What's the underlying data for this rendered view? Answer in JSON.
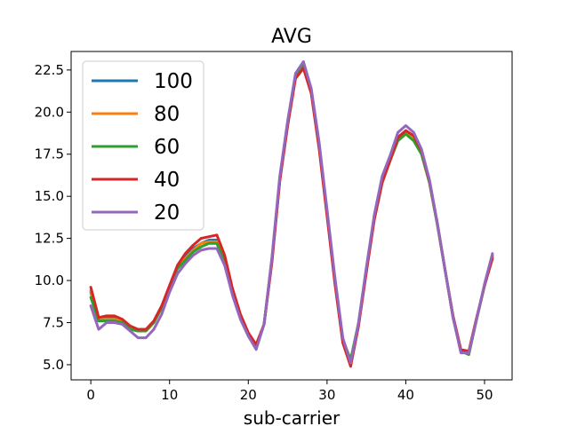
{
  "chart_data": {
    "type": "line",
    "title": "AVG",
    "xlabel": "sub-carrier",
    "ylabel": "",
    "xlim": [
      -2.5,
      53.5
    ],
    "ylim": [
      4.1,
      23.6
    ],
    "xticks": [
      0,
      10,
      20,
      30,
      40,
      50
    ],
    "yticks": [
      5.0,
      7.5,
      10.0,
      12.5,
      15.0,
      17.5,
      20.0,
      22.5
    ],
    "ytick_labels": [
      "5.0",
      "7.5",
      "10.0",
      "12.5",
      "15.0",
      "17.5",
      "20.0",
      "22.5"
    ],
    "xtick_labels": [
      "0",
      "10",
      "20",
      "30",
      "40",
      "50"
    ],
    "grid": false,
    "legend_position": "top-left",
    "x": [
      0,
      1,
      2,
      3,
      4,
      5,
      6,
      7,
      8,
      9,
      10,
      11,
      12,
      13,
      14,
      15,
      16,
      17,
      18,
      19,
      20,
      21,
      22,
      23,
      24,
      25,
      26,
      27,
      28,
      29,
      30,
      31,
      32,
      33,
      34,
      35,
      36,
      37,
      38,
      39,
      40,
      41,
      42,
      43,
      44,
      45,
      46,
      47,
      48,
      49,
      50,
      51
    ],
    "series": [
      {
        "name": "100",
        "color": "#1f77b4",
        "values": [
          9.3,
          7.6,
          7.8,
          7.8,
          7.6,
          7.2,
          7.1,
          7.1,
          7.5,
          8.4,
          9.6,
          10.8,
          11.4,
          11.9,
          12.2,
          12.4,
          12.4,
          11.2,
          9.3,
          7.9,
          6.8,
          6.0,
          7.4,
          11.2,
          16.0,
          19.3,
          22.1,
          22.7,
          21.2,
          18.0,
          14.0,
          10.0,
          6.4,
          5.0,
          7.4,
          10.6,
          13.7,
          16.0,
          17.2,
          18.5,
          18.9,
          18.5,
          17.6,
          15.9,
          13.4,
          10.6,
          7.8,
          5.8,
          5.7,
          7.7,
          9.7,
          11.5
        ]
      },
      {
        "name": "80",
        "color": "#ff7f0e",
        "values": [
          9.4,
          7.7,
          7.7,
          7.7,
          7.6,
          7.2,
          7.0,
          7.0,
          7.5,
          8.4,
          9.6,
          10.8,
          11.3,
          11.8,
          12.2,
          12.3,
          12.3,
          11.2,
          9.3,
          7.9,
          6.8,
          6.0,
          7.4,
          11.2,
          16.0,
          19.3,
          22.1,
          22.8,
          21.2,
          18.0,
          14.0,
          10.0,
          6.4,
          5.1,
          7.4,
          10.6,
          13.7,
          16.0,
          17.2,
          18.5,
          18.9,
          18.5,
          17.6,
          15.9,
          13.4,
          10.6,
          7.8,
          5.8,
          5.6,
          7.7,
          9.7,
          11.4
        ]
      },
      {
        "name": "60",
        "color": "#2ca02c",
        "values": [
          9.0,
          7.6,
          7.6,
          7.6,
          7.5,
          7.1,
          7.0,
          7.0,
          7.5,
          8.4,
          9.6,
          10.7,
          11.2,
          11.7,
          12.0,
          12.2,
          12.2,
          11.1,
          9.2,
          7.8,
          6.7,
          6.0,
          7.4,
          11.3,
          16.0,
          19.4,
          22.2,
          22.8,
          21.3,
          18.0,
          14.0,
          10.0,
          6.5,
          5.3,
          7.5,
          10.7,
          13.7,
          15.9,
          17.1,
          18.3,
          18.7,
          18.3,
          17.5,
          15.8,
          13.3,
          10.6,
          7.8,
          5.8,
          5.6,
          7.7,
          9.7,
          11.4
        ]
      },
      {
        "name": "40",
        "color": "#d62728",
        "values": [
          9.6,
          7.8,
          7.9,
          7.9,
          7.7,
          7.3,
          7.1,
          7.1,
          7.6,
          8.5,
          9.7,
          10.9,
          11.6,
          12.1,
          12.5,
          12.6,
          12.7,
          11.5,
          9.5,
          8.0,
          6.9,
          6.2,
          7.4,
          11.1,
          15.9,
          19.2,
          22.0,
          22.6,
          21.1,
          17.8,
          13.8,
          9.8,
          6.3,
          4.9,
          7.3,
          10.5,
          13.6,
          15.8,
          17.1,
          18.5,
          18.9,
          18.6,
          17.7,
          15.9,
          13.4,
          10.6,
          7.9,
          5.9,
          5.8,
          7.8,
          9.7,
          11.3
        ]
      },
      {
        "name": "20",
        "color": "#9467bd",
        "values": [
          8.5,
          7.1,
          7.5,
          7.5,
          7.4,
          7.0,
          6.6,
          6.6,
          7.1,
          8.0,
          9.3,
          10.4,
          11.0,
          11.5,
          11.8,
          11.9,
          11.9,
          10.9,
          9.1,
          7.7,
          6.7,
          5.9,
          7.4,
          11.4,
          16.2,
          19.5,
          22.3,
          23.0,
          21.4,
          18.2,
          14.2,
          10.2,
          6.6,
          5.1,
          7.5,
          10.8,
          13.9,
          16.2,
          17.4,
          18.8,
          19.2,
          18.8,
          17.8,
          16.0,
          13.4,
          10.6,
          7.8,
          5.7,
          5.7,
          7.7,
          9.8,
          11.6
        ]
      }
    ]
  }
}
